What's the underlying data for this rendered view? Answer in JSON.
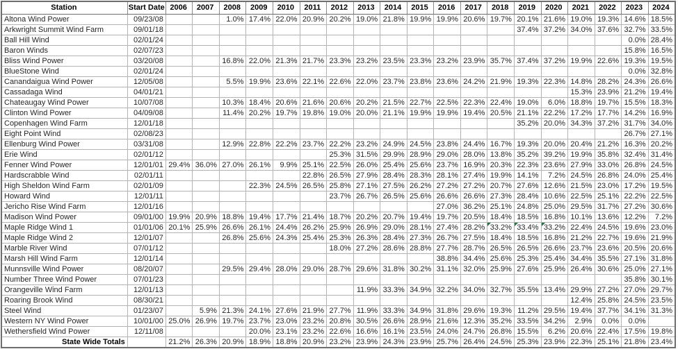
{
  "colors": {
    "grid_line": "#b4b4b4",
    "outer_border": "#6e6e6e",
    "header_text": "#000000",
    "body_text": "#262626",
    "comment_flag_green": "#217346",
    "background": "#ffffff"
  },
  "table": {
    "station_header": "Station",
    "date_header": "Start Date",
    "years": [
      "2006",
      "2007",
      "2008",
      "2009",
      "2010",
      "2011",
      "2012",
      "2013",
      "2014",
      "2015",
      "2016",
      "2017",
      "2018",
      "2019",
      "2020",
      "2021",
      "2022",
      "2023",
      "2024"
    ],
    "rows": [
      {
        "station": "Altona Wind Power",
        "start_date": "09/23/08",
        "values": [
          "",
          "",
          "1.0%",
          "17.4%",
          "22.0%",
          "20.9%",
          "20.2%",
          "19.0%",
          "21.8%",
          "19.9%",
          "19.9%",
          "20.6%",
          "19.7%",
          "20.1%",
          "21.6%",
          "19.0%",
          "19.3%",
          "14.6%",
          "18.5%"
        ]
      },
      {
        "station": "Arkwright Summit Wind Farm",
        "start_date": "09/01/18",
        "values": [
          "",
          "",
          "",
          "",
          "",
          "",
          "",
          "",
          "",
          "",
          "",
          "",
          "",
          "37.4%",
          "37.2%",
          "34.0%",
          "37.6%",
          "32.7%",
          "33.5%"
        ]
      },
      {
        "station": "Ball Hill Wind",
        "start_date": "02/01/24",
        "values": [
          "",
          "",
          "",
          "",
          "",
          "",
          "",
          "",
          "",
          "",
          "",
          "",
          "",
          "",
          "",
          "",
          "",
          "0.0%",
          "28.4%"
        ]
      },
      {
        "station": "Baron Winds",
        "start_date": "02/07/23",
        "values": [
          "",
          "",
          "",
          "",
          "",
          "",
          "",
          "",
          "",
          "",
          "",
          "",
          "",
          "",
          "",
          "",
          "",
          "15.8%",
          "16.5%"
        ]
      },
      {
        "station": "Bliss Wind Power",
        "start_date": "03/20/08",
        "values": [
          "",
          "",
          "16.8%",
          "22.0%",
          "21.3%",
          "21.7%",
          "23.3%",
          "23.2%",
          "23.5%",
          "23.3%",
          "23.2%",
          "23.9%",
          "35.7%",
          "37.4%",
          "37.2%",
          "19.9%",
          "22.6%",
          "19.3%",
          "19.5%"
        ]
      },
      {
        "station": "BlueStone Wind",
        "start_date": "02/01/24",
        "values": [
          "",
          "",
          "",
          "",
          "",
          "",
          "",
          "",
          "",
          "",
          "",
          "",
          "",
          "",
          "",
          "",
          "",
          "0.0%",
          "32.8%"
        ]
      },
      {
        "station": "Canandaigua Wind Power",
        "start_date": "12/05/08",
        "values": [
          "",
          "",
          "5.5%",
          "19.9%",
          "23.6%",
          "22.1%",
          "22.6%",
          "22.0%",
          "23.7%",
          "23.8%",
          "23.6%",
          "24.2%",
          "21.9%",
          "19.3%",
          "22.3%",
          "14.8%",
          "28.2%",
          "24.3%",
          "26.6%"
        ]
      },
      {
        "station": "Cassadaga Wind",
        "start_date": "04/01/21",
        "values": [
          "",
          "",
          "",
          "",
          "",
          "",
          "",
          "",
          "",
          "",
          "",
          "",
          "",
          "",
          "",
          "15.3%",
          "23.9%",
          "21.2%",
          "19.4%"
        ]
      },
      {
        "station": "Chateaugay Wind Power",
        "start_date": "10/07/08",
        "values": [
          "",
          "",
          "10.3%",
          "18.4%",
          "20.6%",
          "21.6%",
          "20.6%",
          "20.2%",
          "21.5%",
          "22.7%",
          "22.5%",
          "22.3%",
          "22.4%",
          "19.0%",
          "6.0%",
          "18.8%",
          "19.7%",
          "15.5%",
          "18.3%"
        ]
      },
      {
        "station": "Clinton Wind Power",
        "start_date": "04/09/08",
        "values": [
          "",
          "",
          "11.4%",
          "20.2%",
          "19.7%",
          "19.8%",
          "19.0%",
          "20.0%",
          "21.1%",
          "19.9%",
          "19.9%",
          "19.4%",
          "20.5%",
          "21.1%",
          "22.2%",
          "17.2%",
          "17.7%",
          "14.2%",
          "16.9%"
        ]
      },
      {
        "station": "Copenhagen Wind Farm",
        "start_date": "12/01/18",
        "values": [
          "",
          "",
          "",
          "",
          "",
          "",
          "",
          "",
          "",
          "",
          "",
          "",
          "",
          "35.2%",
          "20.0%",
          "34.3%",
          "37.2%",
          "31.7%",
          "34.0%"
        ]
      },
      {
        "station": "Eight Point Wind",
        "start_date": "02/08/23",
        "values": [
          "",
          "",
          "",
          "",
          "",
          "",
          "",
          "",
          "",
          "",
          "",
          "",
          "",
          "",
          "",
          "",
          "",
          "26.7%",
          "27.1%"
        ]
      },
      {
        "station": "Ellenburg Wind Power",
        "start_date": "03/31/08",
        "values": [
          "",
          "",
          "12.9%",
          "22.8%",
          "22.2%",
          "23.7%",
          "22.2%",
          "23.2%",
          "24.9%",
          "24.5%",
          "23.8%",
          "24.4%",
          "16.7%",
          "19.3%",
          "20.0%",
          "20.4%",
          "21.2%",
          "16.3%",
          "20.2%"
        ]
      },
      {
        "station": "Erie Wind",
        "start_date": "02/01/12",
        "values": [
          "",
          "",
          "",
          "",
          "",
          "",
          "25.3%",
          "31.5%",
          "29.9%",
          "28.9%",
          "29.0%",
          "28.0%",
          "13.8%",
          "35.2%",
          "39.2%",
          "19.9%",
          "35.8%",
          "32.4%",
          "31.4%"
        ]
      },
      {
        "station": "Fenner Wind Power",
        "start_date": "12/01/01",
        "values": [
          "29.4%",
          "36.0%",
          "27.0%",
          "26.1%",
          "9.9%",
          "25.1%",
          "22.5%",
          "26.0%",
          "25.4%",
          "25.6%",
          "23.7%",
          "16.9%",
          "20.3%",
          "22.3%",
          "23.6%",
          "27.9%",
          "33.0%",
          "26.8%",
          "24.5%"
        ]
      },
      {
        "station": "Hardscrabble Wind",
        "start_date": "02/01/11",
        "values": [
          "",
          "",
          "",
          "",
          "",
          "22.8%",
          "26.5%",
          "27.9%",
          "28.4%",
          "28.3%",
          "28.1%",
          "27.4%",
          "19.9%",
          "14.1%",
          "7.2%",
          "24.5%",
          "26.8%",
          "24.0%",
          "25.4%"
        ]
      },
      {
        "station": "High Sheldon Wind Farm",
        "start_date": "02/01/09",
        "values": [
          "",
          "",
          "",
          "22.3%",
          "24.5%",
          "26.5%",
          "25.8%",
          "27.1%",
          "27.5%",
          "26.2%",
          "27.2%",
          "27.2%",
          "20.7%",
          "27.6%",
          "12.6%",
          "21.5%",
          "23.0%",
          "17.2%",
          "19.5%"
        ]
      },
      {
        "station": "Howard Wind",
        "start_date": "12/01/11",
        "values": [
          "",
          "",
          "",
          "",
          "",
          "",
          "23.7%",
          "26.7%",
          "26.5%",
          "25.6%",
          "26.6%",
          "26.6%",
          "27.3%",
          "28.4%",
          "10.6%",
          "22.5%",
          "25.1%",
          "22.2%",
          "22.5%"
        ]
      },
      {
        "station": "Jericho Rise Wind Farm",
        "start_date": "12/01/16",
        "values": [
          "",
          "",
          "",
          "",
          "",
          "",
          "",
          "",
          "",
          "",
          "27.0%",
          "36.2%",
          "25.1%",
          "24.8%",
          "25.0%",
          "29.5%",
          "31.7%",
          "27.2%",
          "30.6%"
        ]
      },
      {
        "station": "Madison Wind Power",
        "start_date": "09/01/00",
        "values": [
          "19.9%",
          "20.9%",
          "18.8%",
          "19.4%",
          "17.7%",
          "21.4%",
          "18.7%",
          "20.2%",
          "20.7%",
          "19.4%",
          "19.7%",
          "20.5%",
          "18.4%",
          "18.5%",
          "16.8%",
          "10.1%",
          "13.6%",
          "12.2%",
          "7.2%"
        ]
      },
      {
        "station": "Maple Ridge Wind 1",
        "start_date": "01/01/06",
        "values": [
          "20.1%",
          "25.9%",
          "26.6%",
          "26.1%",
          "24.4%",
          "26.2%",
          "25.9%",
          "26.9%",
          "29.0%",
          "28.1%",
          "27.4%",
          "28.2%",
          "33.2%",
          "33.4%",
          "33.2%",
          "22.4%",
          "24.5%",
          "19.6%",
          "23.0%"
        ],
        "flags": [
          12,
          13,
          14
        ]
      },
      {
        "station": "Maple Ridge Wind 2",
        "start_date": "12/01/07",
        "values": [
          "",
          "",
          "26.8%",
          "25.6%",
          "24.3%",
          "25.4%",
          "25.3%",
          "26.3%",
          "28.4%",
          "27.3%",
          "26.7%",
          "27.5%",
          "18.4%",
          "18.5%",
          "16.8%",
          "21.2%",
          "22.7%",
          "19.6%",
          "21.9%"
        ]
      },
      {
        "station": "Marble River Wind",
        "start_date": "07/01/12",
        "values": [
          "",
          "",
          "",
          "",
          "",
          "",
          "18.0%",
          "27.2%",
          "28.6%",
          "28.8%",
          "27.7%",
          "28.7%",
          "26.5%",
          "26.5%",
          "26.6%",
          "23.7%",
          "23.6%",
          "20.5%",
          "20.6%"
        ]
      },
      {
        "station": "Marsh Hill Wind Farm",
        "start_date": "12/01/14",
        "values": [
          "",
          "",
          "",
          "",
          "",
          "",
          "",
          "",
          "",
          "",
          "38.8%",
          "34.4%",
          "25.6%",
          "25.3%",
          "25.4%",
          "34.4%",
          "35.5%",
          "27.1%",
          "31.8%"
        ]
      },
      {
        "station": "Munnsville Wind Power",
        "start_date": "08/20/07",
        "values": [
          "",
          "",
          "29.5%",
          "29.4%",
          "28.0%",
          "29.0%",
          "28.7%",
          "29.6%",
          "31.8%",
          "30.2%",
          "31.1%",
          "32.0%",
          "25.9%",
          "27.6%",
          "25.9%",
          "26.4%",
          "30.6%",
          "25.0%",
          "27.1%"
        ]
      },
      {
        "station": "Number Three Wind Power",
        "start_date": "07/01/23",
        "values": [
          "",
          "",
          "",
          "",
          "",
          "",
          "",
          "",
          "",
          "",
          "",
          "",
          "",
          "",
          "",
          "",
          "",
          "35.8%",
          "30.1%"
        ]
      },
      {
        "station": "Orangeville Wind Farm",
        "start_date": "12/01/13",
        "values": [
          "",
          "",
          "",
          "",
          "",
          "",
          "",
          "11.9%",
          "33.3%",
          "34.9%",
          "32.2%",
          "34.0%",
          "32.7%",
          "35.5%",
          "13.4%",
          "29.9%",
          "27.2%",
          "27.0%",
          "29.7%"
        ]
      },
      {
        "station": "Roaring Brook Wind",
        "start_date": "08/30/21",
        "values": [
          "",
          "",
          "",
          "",
          "",
          "",
          "",
          "",
          "",
          "",
          "",
          "",
          "",
          "",
          "",
          "12.4%",
          "25.8%",
          "24.5%",
          "23.5%"
        ]
      },
      {
        "station": "Steel Wind",
        "start_date": "01/23/07",
        "values": [
          "",
          "5.9%",
          "21.3%",
          "24.1%",
          "27.6%",
          "21.9%",
          "27.7%",
          "11.9%",
          "33.3%",
          "34.9%",
          "31.8%",
          "29.6%",
          "19.3%",
          "11.2%",
          "29.5%",
          "19.4%",
          "37.7%",
          "34.1%",
          "31.3%"
        ]
      },
      {
        "station": "Western NY Wind Power",
        "start_date": "10/01/00",
        "values": [
          "25.0%",
          "26.9%",
          "19.7%",
          "23.7%",
          "23.0%",
          "23.2%",
          "20.8%",
          "30.5%",
          "26.6%",
          "28.9%",
          "21.6%",
          "12.3%",
          "35.2%",
          "33.5%",
          "34.2%",
          "2.9%",
          "0.0%",
          "0.0%",
          ""
        ]
      },
      {
        "station": "Wethersfield Wind Power",
        "start_date": "12/11/08",
        "values": [
          "",
          "",
          "",
          "20.0%",
          "23.1%",
          "23.2%",
          "22.6%",
          "16.6%",
          "16.1%",
          "23.5%",
          "24.0%",
          "24.7%",
          "26.8%",
          "15.5%",
          "6.2%",
          "20.6%",
          "22.4%",
          "17.5%",
          "19.8%"
        ]
      }
    ],
    "totals": {
      "label": "State Wide Totals",
      "values": [
        "21.2%",
        "26.3%",
        "20.9%",
        "18.9%",
        "18.8%",
        "20.9%",
        "23.2%",
        "23.9%",
        "24.3%",
        "23.9%",
        "25.7%",
        "26.4%",
        "24.5%",
        "25.3%",
        "23.9%",
        "22.3%",
        "25.1%",
        "21.8%",
        "23.4%"
      ]
    }
  }
}
